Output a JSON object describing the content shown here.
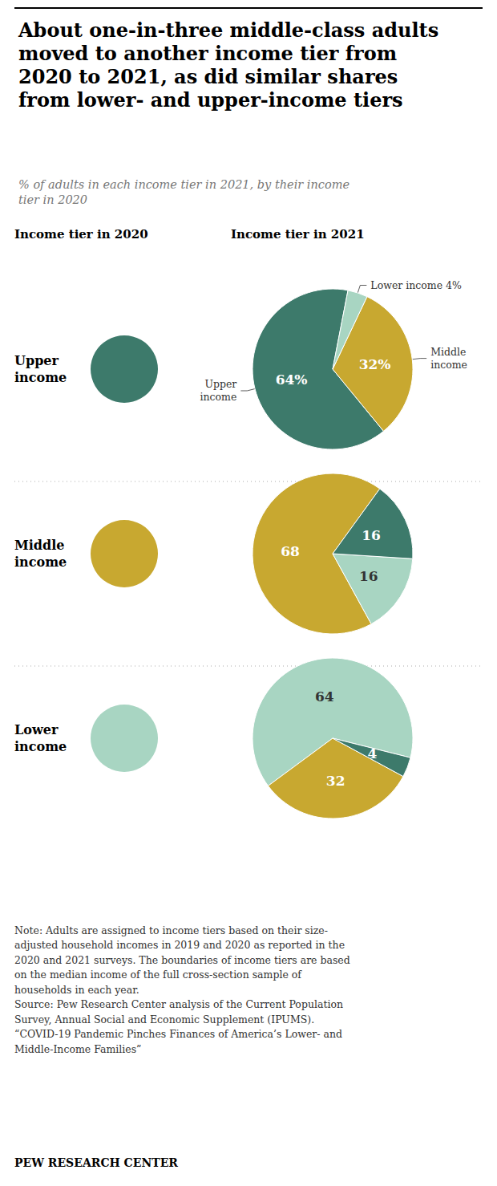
{
  "title": "About one-in-three middle-class adults\nmoved to another income tier from\n2020 to 2021, as did similar shares\nfrom lower- and upper-income tiers",
  "subtitle": "% of adults in each income tier in 2021, by their income\ntier in 2020",
  "annotations": [
    "Income tier in 2020",
    "Income tier in 2021",
    "Note: Adults are assigned to income tiers based on their size-\nadjusted household incomes in 2019 and 2020 as reported in the\n2020 and 2021 surveys. The boundaries of income tiers are based\non the median income of the full cross-section sample of\nhouseholds in each year.\nSource: Pew Research Center analysis of the Current Population\nSurvey, Annual Social and Economic Supplement (IPUMS).\n“COVID-19 Pandemic Pinches Finances of America’s Lower- and\nMiddle-Income Families”",
    "PEW RESEARCH CENTER"
  ],
  "chart_data": [
    {
      "type": "pie",
      "title": "Upper\nincome",
      "color": "#3d7a6b",
      "categories": [
        "Upper\nincome",
        "Middle\nincome",
        "Lower income 4%"
      ],
      "values": [
        64,
        32,
        4
      ],
      "colors": [
        "#3d7a6b",
        "#c8a830",
        "#a8d5c2"
      ],
      "data_labels": true,
      "value_labels": [
        "64%",
        "32%",
        null
      ]
    },
    {
      "type": "pie",
      "title": "Middle\nincome",
      "color": "#c8a830",
      "values": [
        68,
        16,
        16
      ],
      "colors": [
        "#c8a830",
        "#a8d5c2",
        "#3d7a6b"
      ],
      "data_labels": true
    },
    {
      "type": "pie",
      "title": "Lower\nincome",
      "color": "#a8d5c2",
      "values": [
        64,
        32,
        4
      ],
      "colors": [
        "#a8d5c2",
        "#c8a830",
        "#3d7a6b"
      ],
      "data_labels": true
    }
  ]
}
